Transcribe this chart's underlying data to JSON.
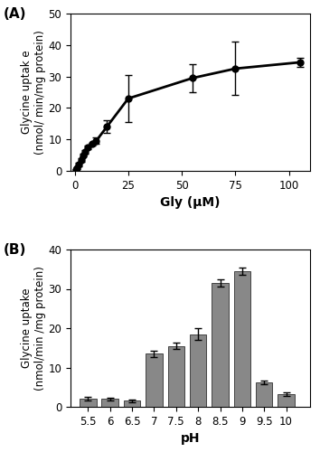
{
  "panel_A": {
    "x": [
      0.5,
      1,
      2,
      3,
      4,
      5,
      6,
      8,
      10,
      15,
      25,
      55,
      75,
      105
    ],
    "y": [
      0.3,
      0.8,
      2.0,
      3.5,
      5.0,
      6.0,
      7.5,
      8.5,
      9.5,
      14.0,
      23.0,
      29.5,
      32.5,
      34.5
    ],
    "yerr": [
      0.2,
      0.3,
      0.5,
      0.5,
      0.5,
      0.5,
      0.5,
      0.5,
      1.0,
      2.0,
      7.5,
      4.5,
      8.5,
      1.5
    ],
    "xlabel": "Gly (μM)",
    "ylabel": "Glycine uptak e\n(nmol/ min/mg protein)",
    "ylim": [
      0,
      50
    ],
    "xlim": [
      -2,
      110
    ],
    "xticks": [
      0,
      25,
      50,
      75,
      100
    ],
    "yticks": [
      0,
      10,
      20,
      30,
      40,
      50
    ],
    "label": "(A)"
  },
  "panel_B": {
    "x": [
      5.5,
      6.0,
      6.5,
      7.0,
      7.5,
      8.0,
      8.5,
      9.0,
      9.5,
      10.0
    ],
    "y": [
      2.0,
      2.0,
      1.5,
      13.5,
      15.5,
      18.5,
      31.5,
      34.5,
      6.2,
      3.2
    ],
    "yerr": [
      0.5,
      0.3,
      0.3,
      0.8,
      0.8,
      1.5,
      1.0,
      1.0,
      0.4,
      0.5
    ],
    "xlabel": "pH",
    "ylabel": "Glycine uptake\n(nmol/min /mg protein)",
    "ylim": [
      0,
      40
    ],
    "xlim": [
      5.1,
      10.55
    ],
    "xticks": [
      5.5,
      6.0,
      6.5,
      7.0,
      7.5,
      8.0,
      8.5,
      9.0,
      9.5,
      10.0
    ],
    "xticklabels": [
      "5.5",
      "6",
      "6.5",
      "7",
      "7.5",
      "8",
      "8.5",
      "9",
      "9.5",
      "10"
    ],
    "yticks": [
      0,
      10,
      20,
      30,
      40
    ],
    "bar_color": "#888888",
    "bar_edgecolor": "#444444",
    "bar_width": 0.38,
    "label": "(B)"
  },
  "line_color": "#000000",
  "marker": "o",
  "markersize": 5,
  "capsize": 3,
  "elinewidth": 1.0,
  "linewidth": 2.0,
  "xlabel_fontsize": 10,
  "ylabel_fontsize": 8.5,
  "tick_fontsize": 8.5,
  "label_fontsize": 11,
  "bg_color": "#ffffff"
}
